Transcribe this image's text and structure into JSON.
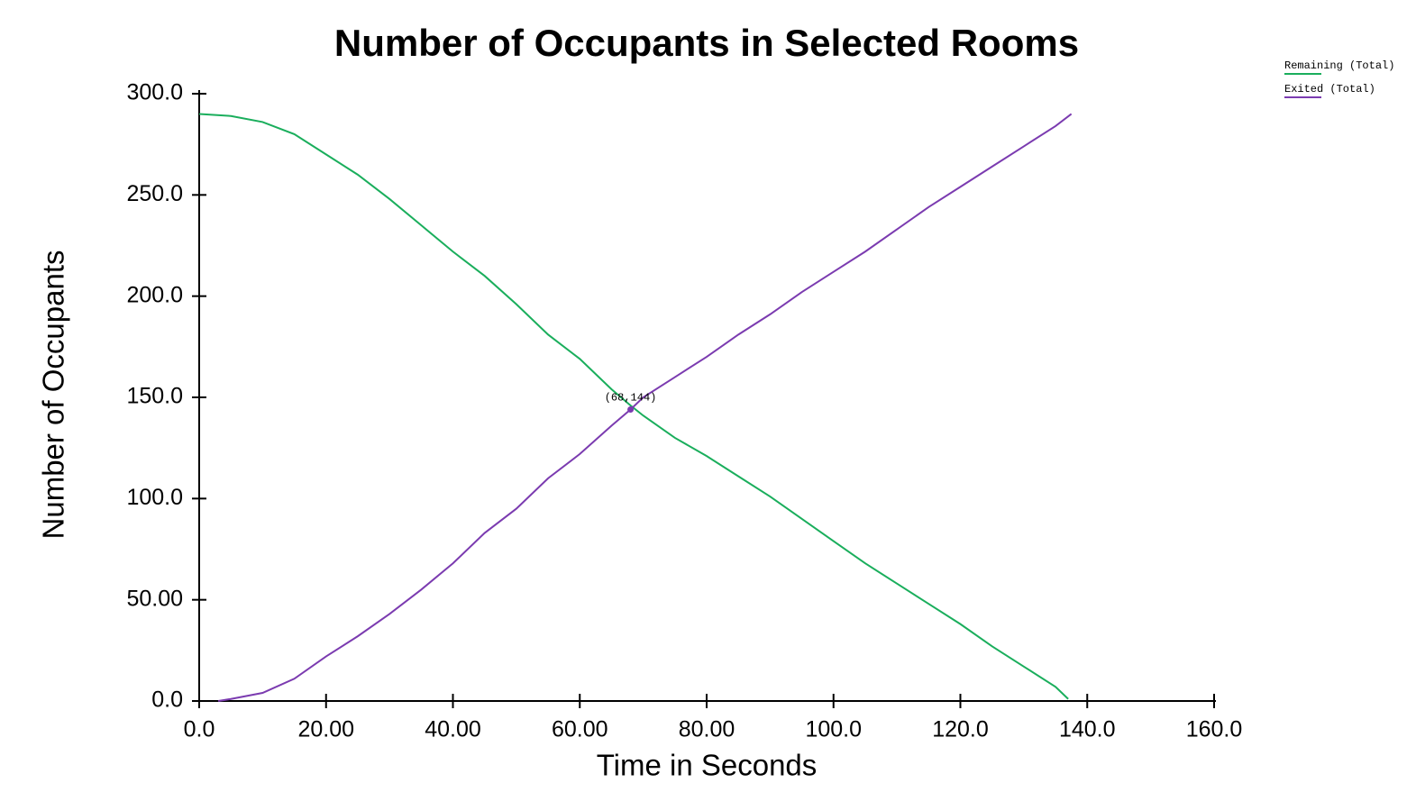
{
  "chart_data": {
    "type": "line",
    "title": "Number of Occupants in Selected Rooms",
    "xlabel": "Time in Seconds",
    "ylabel": "Number of Occupants",
    "xlim": [
      0,
      160
    ],
    "xticks": [
      {
        "value": 0,
        "label": "0.0"
      },
      {
        "value": 20,
        "label": "20.00"
      },
      {
        "value": 40,
        "label": "40.00"
      },
      {
        "value": 60,
        "label": "60.00"
      },
      {
        "value": 80,
        "label": "80.00"
      },
      {
        "value": 100,
        "label": "100.0"
      },
      {
        "value": 120,
        "label": "120.0"
      },
      {
        "value": 140,
        "label": "140.0"
      },
      {
        "value": 160,
        "label": "160.0"
      }
    ],
    "ylim": [
      0,
      300
    ],
    "yticks": [
      {
        "value": 0,
        "label": "0.0"
      },
      {
        "value": 50,
        "label": "50.00"
      },
      {
        "value": 100,
        "label": "100.0"
      },
      {
        "value": 150,
        "label": "150.0"
      },
      {
        "value": 200,
        "label": "200.0"
      },
      {
        "value": 250,
        "label": "250.0"
      },
      {
        "value": 300,
        "label": "300.0"
      }
    ],
    "legend": "top-right",
    "series": [
      {
        "name": "Remaining (Total)",
        "color": "#1aae5c",
        "x": [
          0,
          5,
          10,
          15,
          20,
          25,
          30,
          35,
          40,
          45,
          50,
          55,
          60,
          65,
          68,
          70,
          75,
          80,
          85,
          90,
          95,
          100,
          105,
          110,
          115,
          120,
          125,
          130,
          135,
          137
        ],
        "values": [
          290,
          289,
          286,
          280,
          270,
          260,
          248,
          235,
          222,
          210,
          196,
          181,
          169,
          154,
          146,
          141,
          130,
          121,
          111,
          101,
          90,
          79,
          68,
          58,
          48,
          38,
          27,
          17,
          7,
          1
        ]
      },
      {
        "name": "Exited (Total)",
        "color": "#7b3bb0",
        "x": [
          3,
          5,
          10,
          15,
          20,
          25,
          30,
          35,
          40,
          45,
          50,
          55,
          60,
          65,
          68,
          70,
          75,
          80,
          85,
          90,
          95,
          100,
          105,
          110,
          115,
          120,
          125,
          130,
          135,
          137.5
        ],
        "values": [
          0,
          1,
          4,
          11,
          22,
          32,
          43,
          55,
          68,
          83,
          95,
          110,
          122,
          136,
          144,
          150,
          160,
          170,
          181,
          191,
          202,
          212,
          222,
          233,
          244,
          254,
          264,
          274,
          284,
          290
        ]
      }
    ],
    "annotation": {
      "x": 68,
      "y": 144,
      "label": "(68,144)"
    }
  }
}
